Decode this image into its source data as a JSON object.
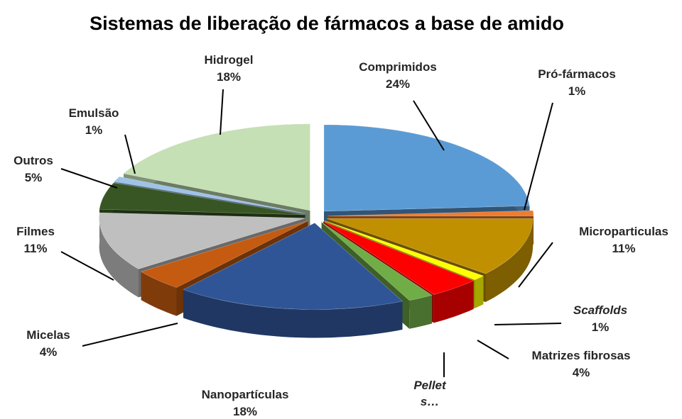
{
  "chart_data": {
    "type": "pie",
    "title": "Sistemas de liberação de fármacos a base de amido",
    "categories": [
      "Comprimidos",
      "Pró-fármacos",
      "Microparticulas",
      "Scaffolds",
      "Matrizes fibrosas",
      "Pellet\ns…",
      "Nanopartículas",
      "Micelas",
      "Filmes",
      "Outros",
      "Emulsão",
      "Hidrogel"
    ],
    "values": [
      24,
      1,
      11,
      1,
      4,
      2,
      18,
      4,
      11,
      5,
      1,
      18
    ],
    "value_labels": [
      "24%",
      "1%",
      "11%",
      "1%",
      "4%",
      null,
      "18%",
      "4%",
      "11%",
      "5%",
      "1%",
      "18%"
    ],
    "colors": [
      "#5b9bd5",
      "#ed7d31",
      "#c09000",
      "#ffff00",
      "#ff0000",
      "#70ad47",
      "#2f5597",
      "#c55a11",
      "#bfbfbf",
      "#375623",
      "#9dc3e6",
      "#c5e0b4"
    ]
  }
}
